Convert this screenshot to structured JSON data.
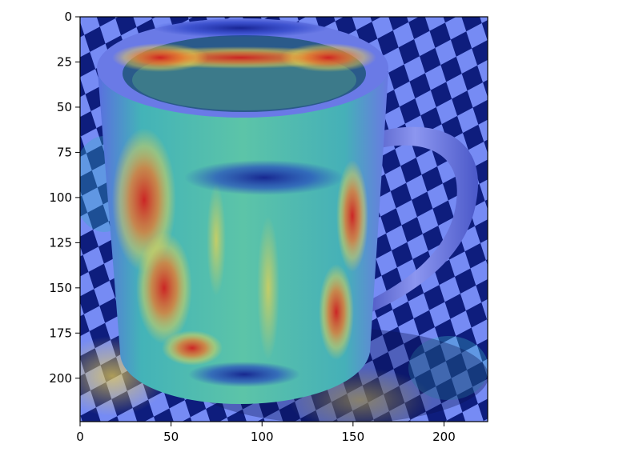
{
  "figure": {
    "image_description_icon": "gradcam-heatmap-mug-image",
    "colormap": "jet",
    "colors": {
      "background": "#ffffff",
      "axis": "#000000",
      "checker_dark": "#0b1a6e",
      "checker_light": "#8aa0ff",
      "mug": "#7c8df0",
      "hot": "#d21e1e",
      "warm": "#f2d34a",
      "mid": "#3ab0c2",
      "cool": "#1b2ab0"
    },
    "x_axis": {
      "range": [
        0,
        224
      ],
      "ticks": [
        0,
        50,
        100,
        150,
        200
      ],
      "tick_labels": [
        "0",
        "50",
        "100",
        "150",
        "200"
      ]
    },
    "y_axis": {
      "range": [
        0,
        224
      ],
      "inverted": true,
      "ticks": [
        0,
        25,
        50,
        75,
        100,
        125,
        150,
        175,
        200
      ],
      "tick_labels": [
        "0",
        "25",
        "50",
        "75",
        "100",
        "125",
        "150",
        "175",
        "200"
      ]
    }
  }
}
